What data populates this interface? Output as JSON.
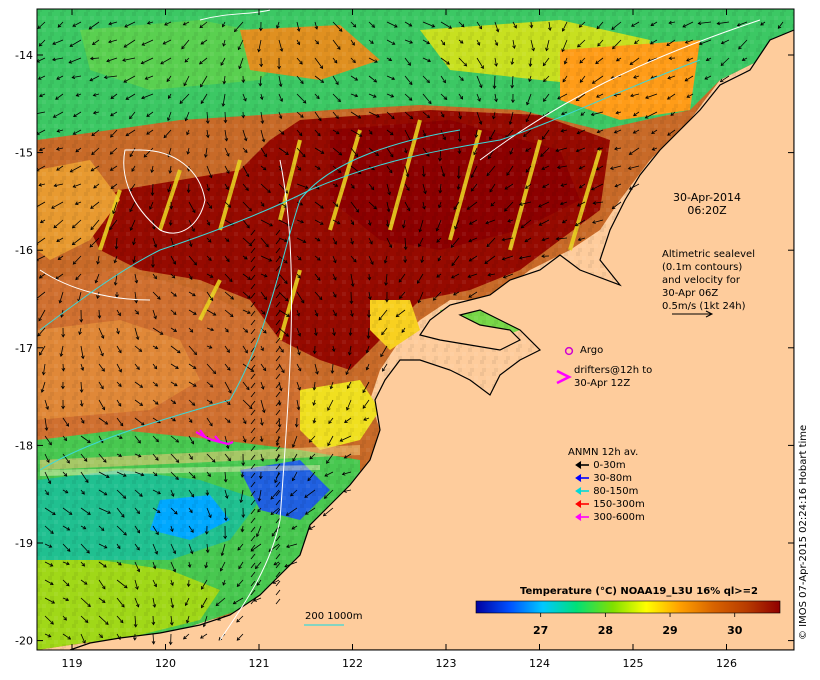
{
  "map": {
    "timestamp_date": "30-Apr-2014",
    "timestamp_time": "06:20Z",
    "y_ticks": [
      "-14",
      "-15",
      "-16",
      "-17",
      "-18",
      "-19",
      "-20"
    ],
    "x_ticks": [
      "119",
      "120",
      "121",
      "122",
      "123",
      "124",
      "125",
      "126"
    ],
    "land_color": "#fecc9c",
    "altimetry_note": [
      "Altimetric sealevel",
      "(0.1m contours)",
      "and velocity for",
      "30-Apr 06Z",
      "0.5m/s (1kt 24h)"
    ],
    "argo_label": "Argo",
    "drifters_note": [
      "drifters@12h to",
      "30-Apr 12Z"
    ],
    "depth_contour_label": "200  1000m",
    "credit": "© IMOS 07-Apr-2015 02:24:16 Hobart time"
  },
  "anmn_legend": {
    "title": "ANMN 12h av.",
    "entries": [
      {
        "label": "0-30m",
        "color": "#000000"
      },
      {
        "label": "30-80m",
        "color": "#0000ff"
      },
      {
        "label": "80-150m",
        "color": "#00d8d8"
      },
      {
        "label": "150-300m",
        "color": "#ff0000"
      },
      {
        "label": "300-600m",
        "color": "#ff00ff"
      }
    ]
  },
  "colorbar": {
    "title": "Temperature (°C) NOAA19_L3U 16% ql>=2",
    "range": [
      26.0,
      30.7
    ],
    "ticks": [
      "27",
      "28",
      "29",
      "30"
    ],
    "stops": [
      "#0000a0",
      "#0050ff",
      "#00c8ff",
      "#00e078",
      "#80e000",
      "#ffff00",
      "#ffa000",
      "#d86400",
      "#b83c00",
      "#900000"
    ]
  }
}
